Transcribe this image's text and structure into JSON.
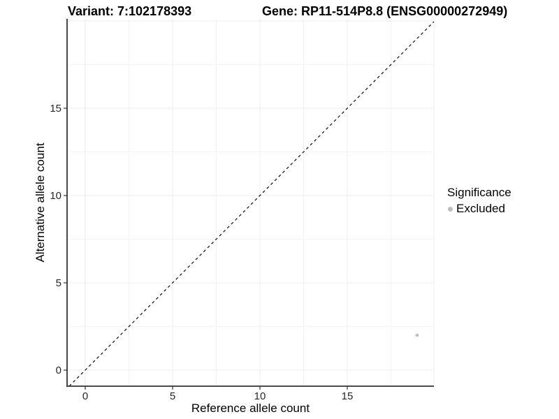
{
  "header": {
    "variant_title": "Variant: 7:102178393",
    "gene_title": "Gene: RP11-514P8.8 (ENSG00000272949)"
  },
  "chart_data": {
    "type": "scatter",
    "title_left": "Variant: 7:102178393",
    "title_right": "Gene: RP11-514P8.8 (ENSG00000272949)",
    "xlabel": "Reference allele count",
    "ylabel": "Alternative allele count",
    "xlim": [
      -1.04,
      19.96
    ],
    "ylim": [
      -0.92,
      20.12
    ],
    "x_ticks": [
      0,
      5,
      10,
      15
    ],
    "y_ticks": [
      0,
      5,
      10,
      15
    ],
    "x_grid_major": [
      0,
      5,
      10,
      15,
      20
    ],
    "y_grid_major": [
      0,
      5,
      10,
      15,
      20
    ],
    "x_grid_minor": [
      2.5,
      7.5,
      12.5,
      17.5
    ],
    "y_grid_minor": [
      2.5,
      7.5,
      12.5,
      17.5
    ],
    "grid": true,
    "identity_line": {
      "style": "dashed",
      "slope": 1,
      "intercept": 0
    },
    "series": [
      {
        "name": "Excluded",
        "color": "#bdbdbd",
        "points": [
          {
            "x": 19,
            "y": 2
          }
        ]
      }
    ],
    "legend": {
      "title": "Significance",
      "position": "right",
      "entries": [
        {
          "label": "Excluded",
          "color": "#bdbdbd"
        }
      ]
    }
  },
  "colors": {
    "axis_line": "#333333",
    "tick": "#333333",
    "grid_major": "#ededed",
    "grid_minor": "#f4f4f4",
    "identity_line": "#000000",
    "point": "#bdbdbd",
    "text": "#000000"
  }
}
